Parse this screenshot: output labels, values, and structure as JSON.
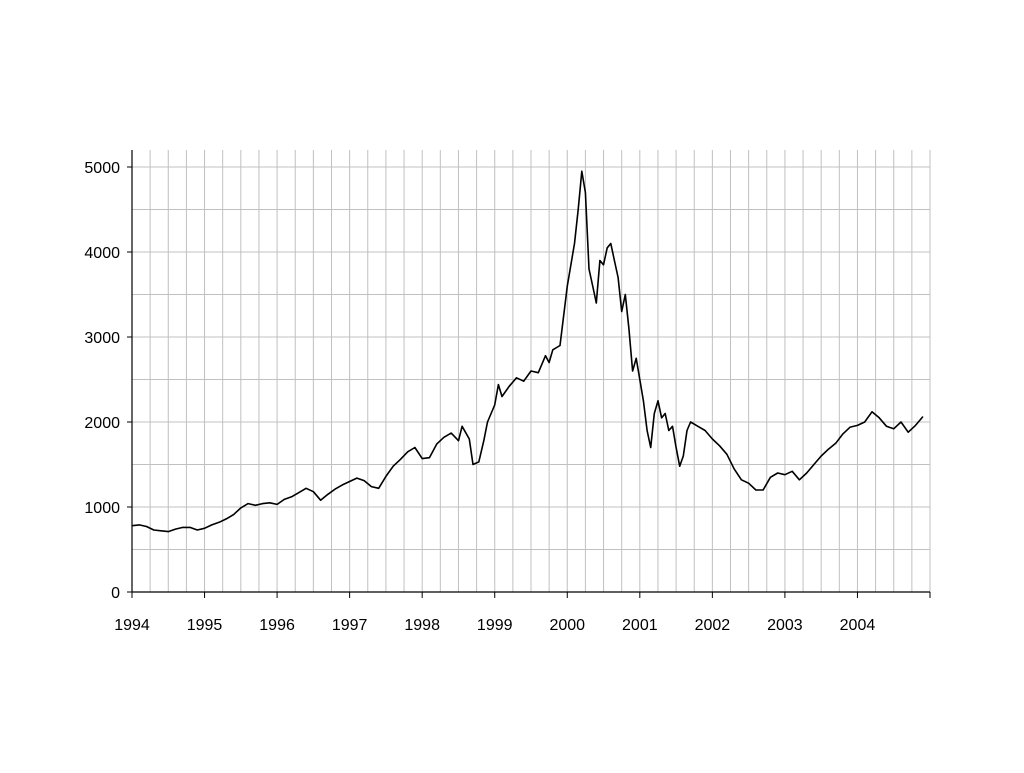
{
  "chart_data": {
    "type": "line",
    "title": "",
    "xlabel": "",
    "ylabel": "",
    "xlim": [
      1994.0,
      2005.0
    ],
    "ylim": [
      0,
      5200
    ],
    "grid": true,
    "x_ticks": [
      1994,
      1995,
      1996,
      1997,
      1998,
      1999,
      2000,
      2001,
      2002,
      2003,
      2004
    ],
    "x_tick_labels": [
      "1994",
      "1995",
      "1996",
      "1997",
      "1998",
      "1999",
      "2000",
      "2001",
      "2002",
      "2003",
      "2004"
    ],
    "y_ticks": [
      0,
      1000,
      2000,
      3000,
      4000,
      5000
    ],
    "y_tick_labels": [
      "0",
      "1000",
      "2000",
      "3000",
      "4000",
      "5000"
    ],
    "series": [
      {
        "color": "#000000",
        "x": [
          1994.0,
          1994.1,
          1994.2,
          1994.3,
          1994.4,
          1994.5,
          1994.6,
          1994.7,
          1994.8,
          1994.9,
          1995.0,
          1995.1,
          1995.2,
          1995.3,
          1995.4,
          1995.5,
          1995.6,
          1995.7,
          1995.8,
          1995.9,
          1996.0,
          1996.1,
          1996.2,
          1996.3,
          1996.4,
          1996.5,
          1996.6,
          1996.7,
          1996.8,
          1996.9,
          1997.0,
          1997.1,
          1997.2,
          1997.3,
          1997.4,
          1997.5,
          1997.6,
          1997.7,
          1997.8,
          1997.9,
          1998.0,
          1998.1,
          1998.2,
          1998.3,
          1998.4,
          1998.5,
          1998.55,
          1998.65,
          1998.7,
          1998.78,
          1998.85,
          1998.9,
          1999.0,
          1999.05,
          1999.1,
          1999.2,
          1999.3,
          1999.4,
          1999.5,
          1999.6,
          1999.7,
          1999.75,
          1999.8,
          1999.9,
          2000.0,
          2000.1,
          2000.15,
          2000.2,
          2000.25,
          2000.3,
          2000.35,
          2000.4,
          2000.45,
          2000.5,
          2000.55,
          2000.6,
          2000.65,
          2000.7,
          2000.75,
          2000.8,
          2000.85,
          2000.9,
          2000.95,
          2001.0,
          2001.05,
          2001.1,
          2001.15,
          2001.2,
          2001.25,
          2001.3,
          2001.35,
          2001.4,
          2001.45,
          2001.5,
          2001.55,
          2001.6,
          2001.65,
          2001.7,
          2001.8,
          2001.9,
          2002.0,
          2002.1,
          2002.2,
          2002.3,
          2002.4,
          2002.5,
          2002.6,
          2002.7,
          2002.8,
          2002.9,
          2003.0,
          2003.1,
          2003.2,
          2003.3,
          2003.4,
          2003.5,
          2003.6,
          2003.7,
          2003.8,
          2003.9,
          2004.0,
          2004.1,
          2004.2,
          2004.3,
          2004.4,
          2004.5,
          2004.6,
          2004.7,
          2004.8,
          2004.9
        ],
        "y": [
          780,
          790,
          770,
          730,
          720,
          710,
          740,
          760,
          760,
          730,
          750,
          790,
          820,
          860,
          910,
          990,
          1040,
          1020,
          1040,
          1050,
          1030,
          1090,
          1120,
          1170,
          1220,
          1180,
          1080,
          1150,
          1210,
          1260,
          1300,
          1340,
          1310,
          1240,
          1220,
          1360,
          1480,
          1560,
          1650,
          1700,
          1570,
          1580,
          1740,
          1820,
          1870,
          1780,
          1950,
          1800,
          1500,
          1530,
          1780,
          2000,
          2200,
          2440,
          2300,
          2420,
          2520,
          2480,
          2600,
          2580,
          2780,
          2700,
          2850,
          2900,
          3600,
          4100,
          4500,
          4950,
          4700,
          3800,
          3600,
          3400,
          3900,
          3850,
          4050,
          4100,
          3900,
          3700,
          3300,
          3500,
          3100,
          2600,
          2750,
          2500,
          2250,
          1900,
          1700,
          2100,
          2250,
          2050,
          2100,
          1900,
          1950,
          1700,
          1480,
          1600,
          1900,
          2000,
          1950,
          1900,
          1800,
          1720,
          1620,
          1450,
          1320,
          1280,
          1200,
          1200,
          1350,
          1400,
          1380,
          1420,
          1320,
          1400,
          1500,
          1600,
          1680,
          1750,
          1860,
          1940,
          1960,
          2000,
          2120,
          2050,
          1950,
          1920,
          2000,
          1880,
          1960,
          2060
        ]
      }
    ]
  }
}
